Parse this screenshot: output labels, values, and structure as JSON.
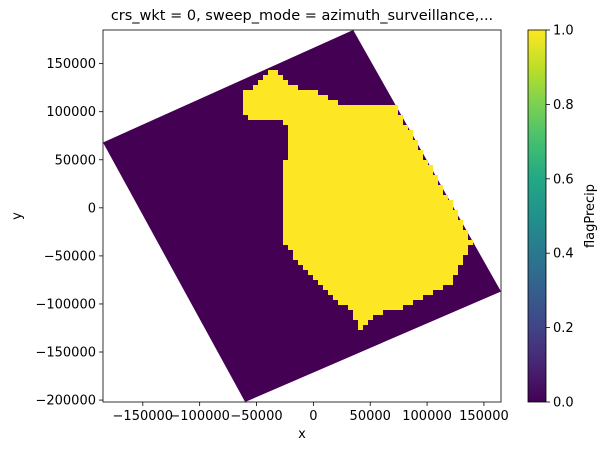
{
  "chart_data": {
    "type": "heatmap",
    "title": "crs_wkt = 0, sweep_mode = azimuth_surveillance,...",
    "xlabel": "x",
    "ylabel": "y",
    "xlim": [
      -185000,
      165000
    ],
    "ylim": [
      -202000,
      185000
    ],
    "x_ticks": [
      -150000,
      -100000,
      -50000,
      0,
      50000,
      100000,
      150000
    ],
    "x_tick_labels": [
      "−150000",
      "−100000",
      "−50000",
      "0",
      "50000",
      "100000",
      "150000"
    ],
    "y_ticks": [
      150000,
      100000,
      50000,
      0,
      -50000,
      -100000,
      -150000,
      -200000
    ],
    "y_tick_labels": [
      "150000",
      "100000",
      "50000",
      "0",
      "−50000",
      "−100000",
      "−150000",
      "−200000"
    ],
    "colormap": "viridis",
    "colorbar": {
      "label": "flagPrecip",
      "range": [
        0.0,
        1.0
      ],
      "ticks": [
        0.0,
        0.2,
        0.4,
        0.6,
        0.8,
        1.0
      ],
      "tick_labels": [
        "0.0",
        "0.2",
        "0.4",
        "0.6",
        "0.8",
        "1.0"
      ]
    },
    "values_present": [
      0,
      1
    ],
    "colors": {
      "zero": "#440154",
      "one": "#fde725"
    },
    "grid": false,
    "data_footprint_corners": [
      [
        -185000,
        68000
      ],
      [
        35000,
        185000
      ],
      [
        165000,
        -87000
      ],
      [
        -60000,
        -202000
      ]
    ],
    "precip_region_outline": [
      [
        -65000,
        100000
      ],
      [
        -60000,
        120000
      ],
      [
        -35000,
        145000
      ],
      [
        -10000,
        120000
      ],
      [
        -5000,
        125000
      ],
      [
        20000,
        110000
      ],
      [
        45000,
        105000
      ],
      [
        80000,
        108000
      ],
      [
        100000,
        80000
      ],
      [
        140000,
        -35000
      ],
      [
        120000,
        -80000
      ],
      [
        95000,
        -95000
      ],
      [
        75000,
        -105000
      ],
      [
        55000,
        -110000
      ],
      [
        40000,
        -130000
      ],
      [
        35000,
        -110000
      ],
      [
        5000,
        -80000
      ],
      [
        -15000,
        -55000
      ],
      [
        -28000,
        -30000
      ],
      [
        -25000,
        -5000
      ],
      [
        -28000,
        30000
      ],
      [
        -20000,
        80000
      ],
      [
        -30000,
        90000
      ],
      [
        -55000,
        92000
      ]
    ]
  }
}
